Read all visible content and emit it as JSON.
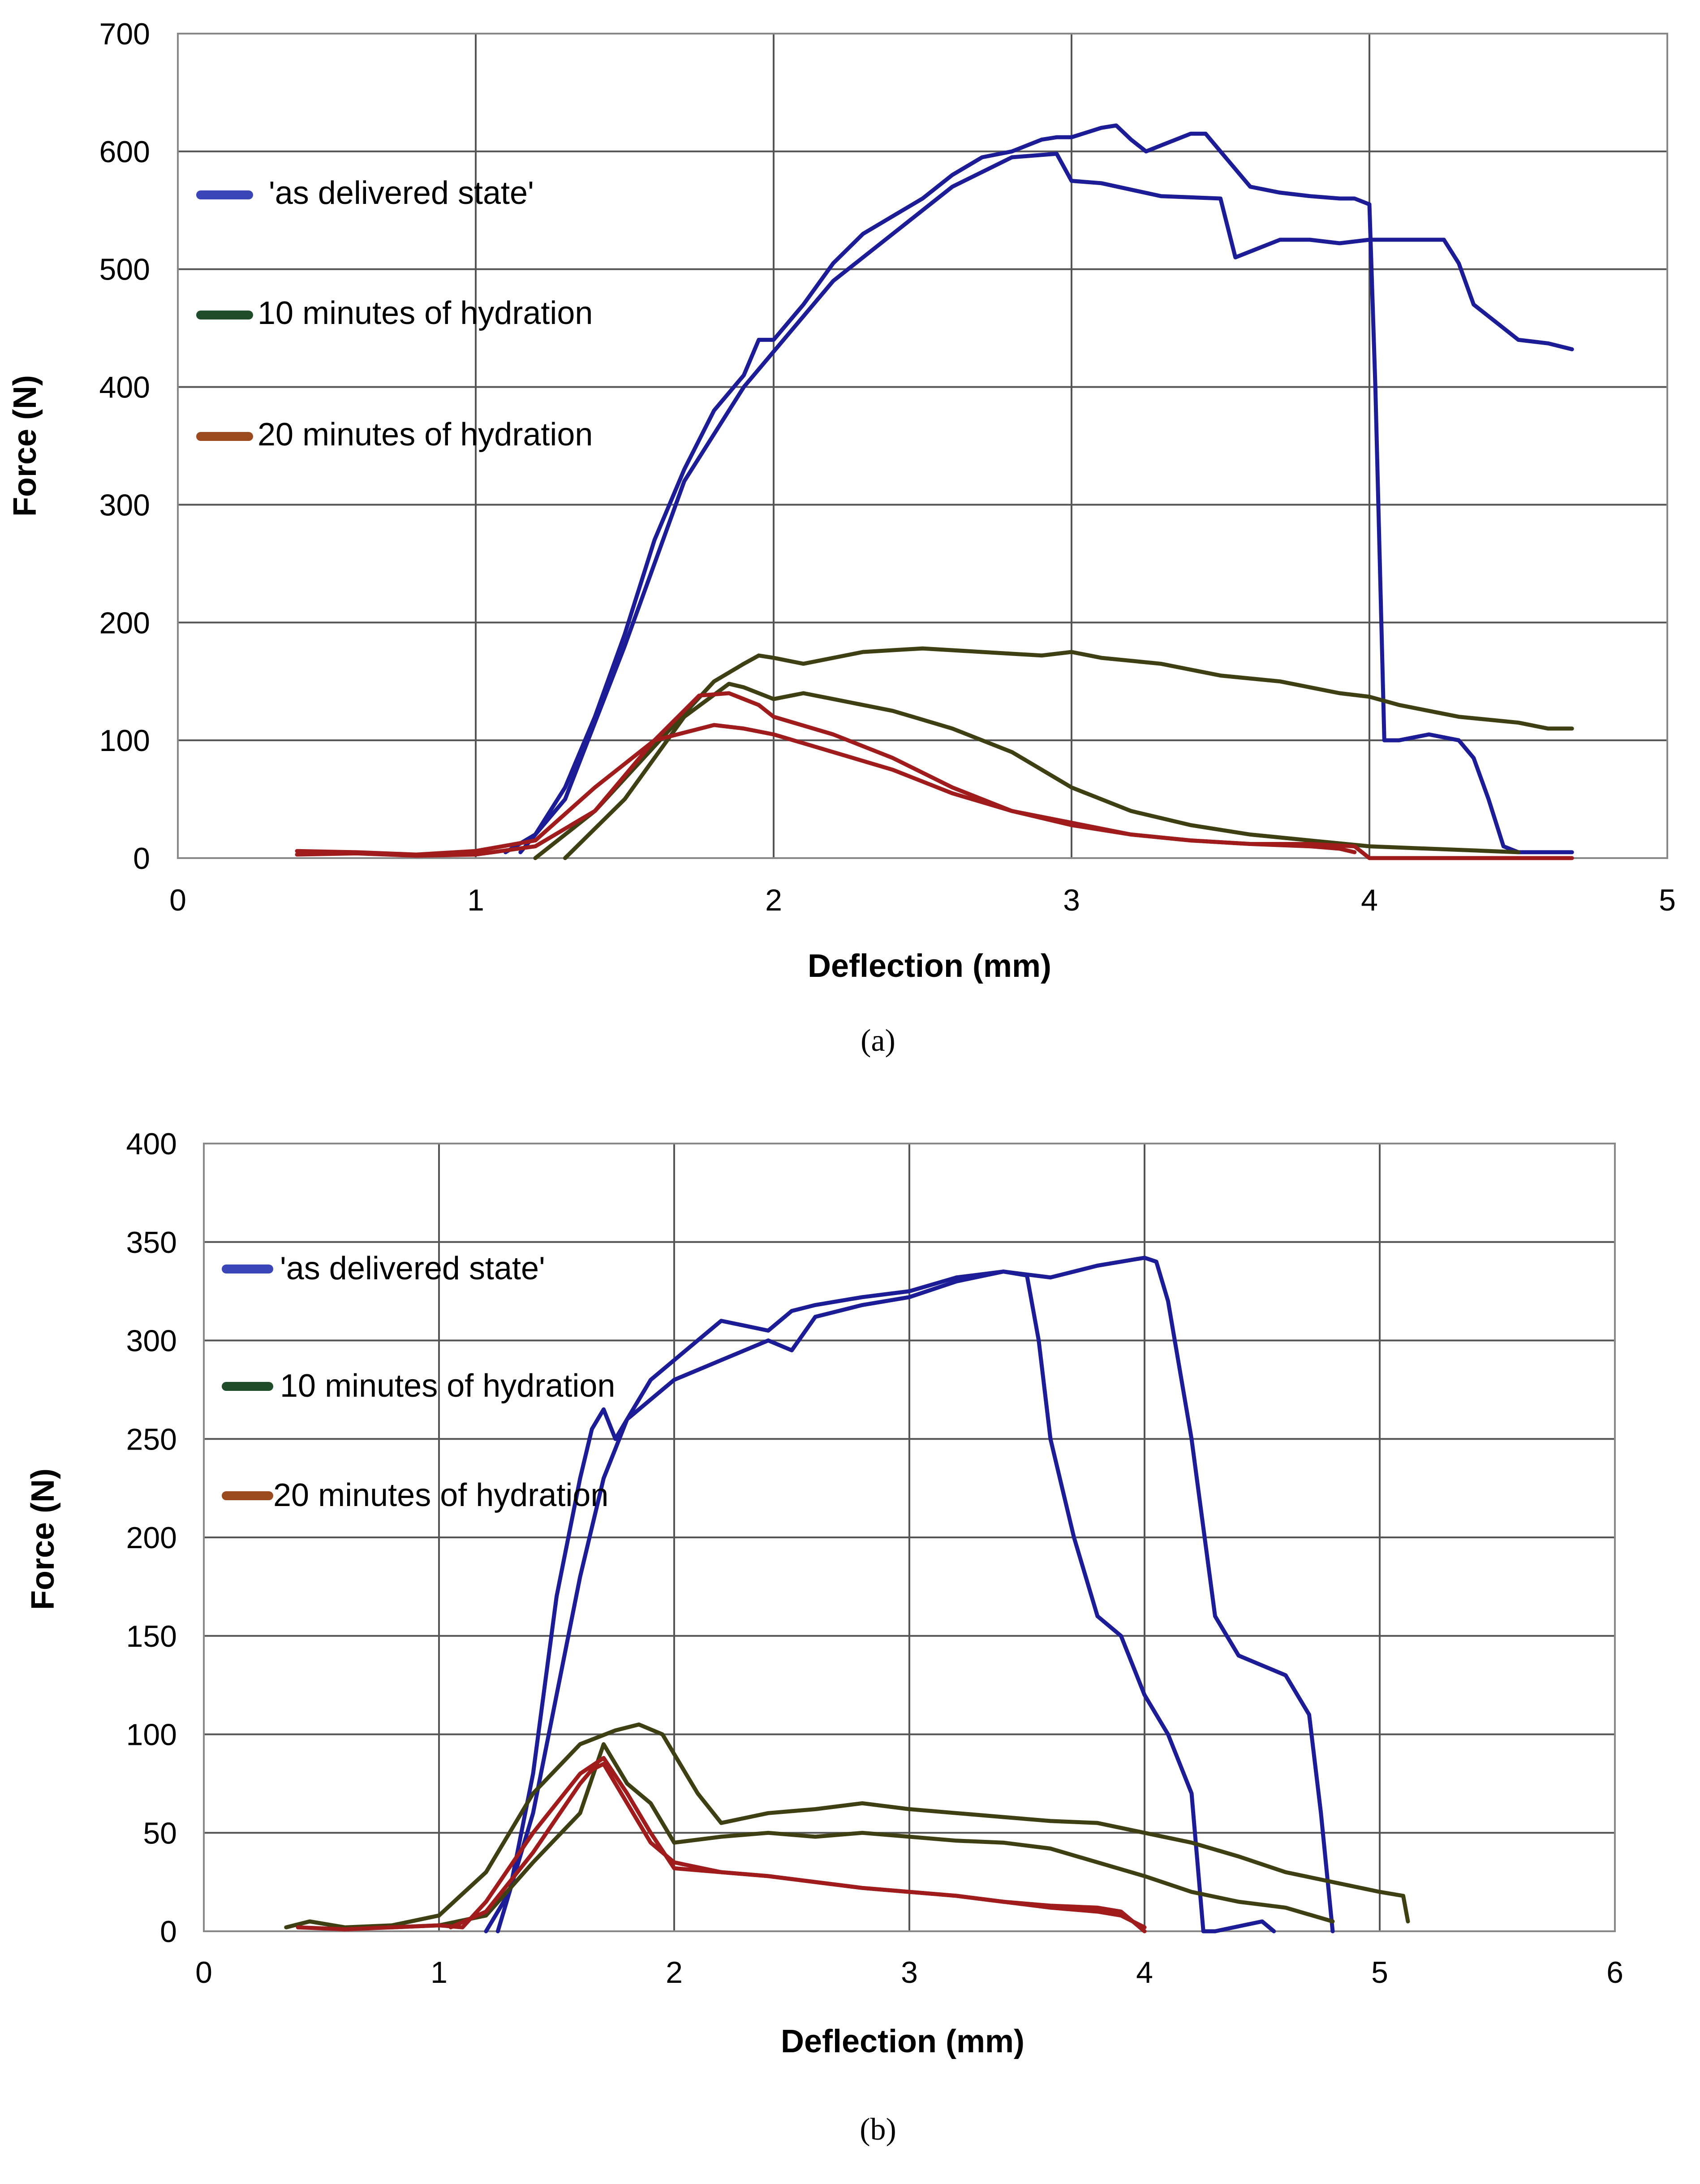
{
  "chart_data": [
    {
      "type": "line",
      "caption": "(a)",
      "xlabel": "Deflection (mm)",
      "ylabel": "Force (N)",
      "xlim": [
        0,
        5
      ],
      "ylim": [
        0,
        700
      ],
      "x_ticks": [
        "0",
        "1",
        "2",
        "3",
        "4",
        "5"
      ],
      "y_ticks": [
        "0",
        "100",
        "200",
        "300",
        "400",
        "500",
        "600",
        "700"
      ],
      "grid": true,
      "legend": [
        {
          "label": "'as delivered state'",
          "color": "#3a45b8"
        },
        {
          "label": "10 minutes of hydration",
          "color": "#1f4d2a"
        },
        {
          "label": "20 minutes of hydration",
          "color": "#9a4a1c"
        }
      ],
      "series": [
        {
          "name": "as delivered state 1",
          "color": "#1c1c96",
          "x": [
            1.1,
            1.2,
            1.3,
            1.4,
            1.5,
            1.6,
            1.7,
            1.8,
            1.9,
            1.95,
            2.0,
            2.1,
            2.2,
            2.3,
            2.4,
            2.5,
            2.6,
            2.7,
            2.8,
            2.9,
            2.95,
            3.0,
            3.1,
            3.15,
            3.2,
            3.25,
            3.3,
            3.4,
            3.45,
            3.5,
            3.6,
            3.7,
            3.8,
            3.9,
            3.95,
            4.0,
            4.02,
            4.05,
            4.1,
            4.2,
            4.3,
            4.35,
            4.4,
            4.45,
            4.5,
            4.55,
            4.6,
            4.68
          ],
          "y": [
            5,
            20,
            60,
            120,
            190,
            270,
            330,
            380,
            410,
            440,
            440,
            470,
            505,
            530,
            545,
            560,
            580,
            595,
            600,
            610,
            612,
            612,
            620,
            622,
            610,
            600,
            605,
            615,
            615,
            600,
            570,
            565,
            562,
            560,
            560,
            555,
            400,
            100,
            100,
            105,
            100,
            85,
            50,
            10,
            5,
            5,
            5,
            5
          ]
        },
        {
          "name": "as delivered state 2",
          "color": "#1c1c96",
          "x": [
            1.15,
            1.3,
            1.5,
            1.7,
            1.9,
            2.0,
            2.2,
            2.4,
            2.6,
            2.8,
            2.95,
            3.0,
            3.1,
            3.3,
            3.5,
            3.55,
            3.6,
            3.7,
            3.8,
            3.9,
            4.0,
            4.1,
            4.2,
            4.25,
            4.3,
            4.35,
            4.4,
            4.5,
            4.6,
            4.68
          ],
          "y": [
            5,
            50,
            180,
            320,
            400,
            430,
            490,
            530,
            570,
            595,
            598,
            575,
            573,
            562,
            560,
            510,
            515,
            525,
            525,
            522,
            525,
            525,
            525,
            525,
            505,
            470,
            460,
            440,
            437,
            432
          ]
        },
        {
          "name": "10 minutes of hydration 1",
          "color": "#3f3f14",
          "x": [
            1.2,
            1.4,
            1.6,
            1.8,
            1.9,
            1.95,
            2.0,
            2.1,
            2.3,
            2.5,
            2.7,
            2.9,
            3.0,
            3.1,
            3.3,
            3.5,
            3.7,
            3.9,
            4.0,
            4.1,
            4.3,
            4.5,
            4.6,
            4.68
          ],
          "y": [
            0,
            40,
            95,
            150,
            165,
            172,
            170,
            165,
            175,
            178,
            175,
            172,
            175,
            170,
            165,
            155,
            150,
            140,
            137,
            130,
            120,
            115,
            110,
            110
          ]
        },
        {
          "name": "10 minutes of hydration 2",
          "color": "#3f3f14",
          "x": [
            1.3,
            1.5,
            1.7,
            1.85,
            1.9,
            2.0,
            2.1,
            2.2,
            2.4,
            2.6,
            2.8,
            3.0,
            3.2,
            3.4,
            3.6,
            3.8,
            4.0,
            4.2,
            4.4,
            4.5
          ],
          "y": [
            0,
            50,
            120,
            148,
            145,
            135,
            140,
            135,
            125,
            110,
            90,
            60,
            40,
            28,
            20,
            15,
            10,
            8,
            6,
            5
          ]
        },
        {
          "name": "20 minutes of hydration 1",
          "color": "#a01c1c",
          "x": [
            0.4,
            0.6,
            0.8,
            1.0,
            1.2,
            1.4,
            1.6,
            1.75,
            1.85,
            1.95,
            2.0,
            2.2,
            2.4,
            2.6,
            2.8,
            3.0,
            3.2,
            3.4,
            3.6,
            3.8,
            3.95,
            4.0,
            4.5,
            4.68
          ],
          "y": [
            3,
            4,
            2,
            3,
            10,
            40,
            100,
            138,
            140,
            130,
            120,
            105,
            85,
            60,
            40,
            30,
            20,
            15,
            12,
            12,
            10,
            0,
            0,
            0
          ]
        },
        {
          "name": "20 minutes of hydration 2",
          "color": "#a01c1c",
          "x": [
            0.4,
            0.6,
            0.8,
            1.0,
            1.2,
            1.4,
            1.6,
            1.8,
            1.9,
            2.0,
            2.2,
            2.4,
            2.6,
            2.8,
            3.0,
            3.2,
            3.4,
            3.6,
            3.8,
            3.9,
            3.95
          ],
          "y": [
            6,
            5,
            3,
            6,
            15,
            60,
            100,
            113,
            110,
            105,
            90,
            75,
            55,
            40,
            28,
            20,
            15,
            12,
            10,
            8,
            5
          ]
        }
      ]
    },
    {
      "type": "line",
      "caption": "(b)",
      "xlabel": "Deflection (mm)",
      "ylabel": "Force (N)",
      "xlim": [
        0,
        6
      ],
      "ylim": [
        0,
        400
      ],
      "x_ticks": [
        "0",
        "1",
        "2",
        "3",
        "4",
        "5",
        "6"
      ],
      "y_ticks": [
        "0",
        "50",
        "100",
        "150",
        "200",
        "250",
        "300",
        "350",
        "400"
      ],
      "grid": true,
      "legend": [
        {
          "label": "'as delivered state'",
          "color": "#3a45b8"
        },
        {
          "label": "10 minutes of hydration",
          "color": "#1f4d2a"
        },
        {
          "label": "20 minutes of hydration",
          "color": "#9a4a1c"
        }
      ],
      "series": [
        {
          "name": "as delivered state 1",
          "color": "#1c1c96",
          "x": [
            1.2,
            1.3,
            1.4,
            1.5,
            1.6,
            1.65,
            1.7,
            1.75,
            1.8,
            1.9,
            2.0,
            2.2,
            2.4,
            2.5,
            2.6,
            2.8,
            3.0,
            3.2,
            3.4,
            3.5,
            3.55,
            3.6,
            3.7,
            3.8,
            3.9,
            4.0,
            4.1,
            4.2,
            4.25,
            4.3,
            4.5,
            4.55
          ],
          "y": [
            0,
            20,
            80,
            170,
            230,
            255,
            265,
            250,
            260,
            280,
            290,
            310,
            305,
            315,
            318,
            322,
            325,
            332,
            335,
            333,
            300,
            250,
            200,
            160,
            150,
            120,
            100,
            70,
            0,
            0,
            5,
            0
          ]
        },
        {
          "name": "as delivered state 2",
          "color": "#1c1c96",
          "x": [
            1.25,
            1.4,
            1.6,
            1.7,
            1.8,
            1.9,
            2.0,
            2.2,
            2.4,
            2.5,
            2.6,
            2.8,
            3.0,
            3.2,
            3.4,
            3.6,
            3.8,
            3.9,
            4.0,
            4.05,
            4.1,
            4.2,
            4.3,
            4.4,
            4.6,
            4.7,
            4.75,
            4.8
          ],
          "y": [
            0,
            60,
            180,
            230,
            260,
            270,
            280,
            290,
            300,
            295,
            312,
            318,
            322,
            330,
            335,
            332,
            338,
            340,
            342,
            340,
            320,
            250,
            160,
            140,
            130,
            110,
            60,
            0
          ]
        },
        {
          "name": "10 minutes of hydration 1",
          "color": "#3f3f14",
          "x": [
            0.35,
            0.45,
            0.6,
            0.8,
            1.0,
            1.2,
            1.4,
            1.6,
            1.75,
            1.85,
            1.95,
            2.05,
            2.1,
            2.2,
            2.4,
            2.6,
            2.8,
            3.0,
            3.2,
            3.4,
            3.6,
            3.8,
            4.0,
            4.2,
            4.4,
            4.6,
            4.8,
            5.0,
            5.1,
            5.12
          ],
          "y": [
            2,
            5,
            2,
            3,
            8,
            30,
            70,
            95,
            102,
            105,
            100,
            80,
            70,
            55,
            60,
            62,
            65,
            62,
            60,
            58,
            56,
            55,
            50,
            45,
            38,
            30,
            25,
            20,
            18,
            5
          ]
        },
        {
          "name": "10 minutes of hydration 2",
          "color": "#3f3f14",
          "x": [
            0.8,
            1.0,
            1.2,
            1.4,
            1.6,
            1.7,
            1.8,
            1.9,
            2.0,
            2.2,
            2.4,
            2.6,
            2.8,
            3.0,
            3.2,
            3.4,
            3.6,
            3.8,
            4.0,
            4.2,
            4.4,
            4.6,
            4.8
          ],
          "y": [
            2,
            3,
            8,
            35,
            60,
            95,
            75,
            65,
            45,
            48,
            50,
            48,
            50,
            48,
            46,
            45,
            42,
            35,
            28,
            20,
            15,
            12,
            5
          ]
        },
        {
          "name": "20 minutes of hydration 1",
          "color": "#a01c1c",
          "x": [
            0.4,
            0.6,
            0.8,
            1.0,
            1.1,
            1.2,
            1.4,
            1.6,
            1.7,
            1.8,
            1.9,
            2.0,
            2.2,
            2.4,
            2.6,
            2.8,
            3.0,
            3.2,
            3.4,
            3.6,
            3.8,
            3.9,
            4.0
          ],
          "y": [
            2,
            1,
            2,
            3,
            2,
            15,
            50,
            80,
            88,
            70,
            50,
            32,
            30,
            28,
            25,
            22,
            20,
            18,
            15,
            13,
            12,
            10,
            0
          ]
        },
        {
          "name": "20 minutes of hydration 2",
          "color": "#a01c1c",
          "x": [
            1.05,
            1.2,
            1.4,
            1.6,
            1.65,
            1.7,
            1.8,
            1.9,
            2.0,
            2.2,
            2.4,
            2.6,
            2.8,
            3.0,
            3.2,
            3.4,
            3.6,
            3.8,
            3.9,
            4.0
          ],
          "y": [
            2,
            10,
            40,
            75,
            82,
            85,
            65,
            45,
            35,
            30,
            28,
            25,
            22,
            20,
            18,
            15,
            12,
            10,
            8,
            2
          ]
        }
      ]
    }
  ]
}
